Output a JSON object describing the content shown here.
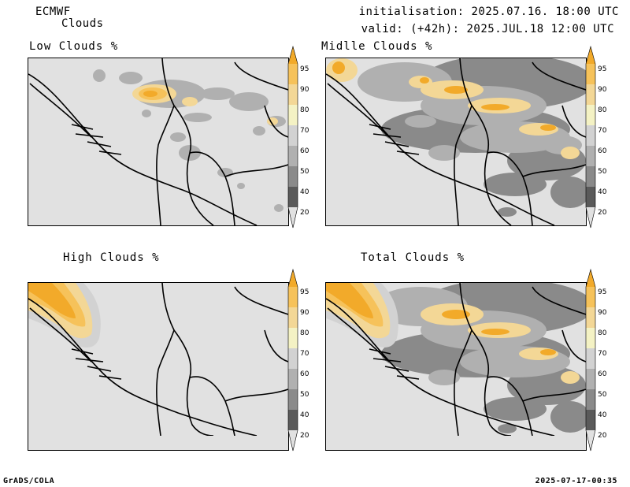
{
  "header": {
    "model": "ECMWF",
    "product": "Clouds",
    "init": "initialisation: 2025.07.16. 18:00 UTC",
    "valid": "valid: (+42h): 2025.JUL.18 12:00 UTC"
  },
  "panels": [
    {
      "title": "Low Clouds %"
    },
    {
      "title": "Midlle Clouds %"
    },
    {
      "title": "High Clouds %"
    },
    {
      "title": "Total Clouds %"
    }
  ],
  "legend": {
    "labels": [
      "95",
      "90",
      "80",
      "70",
      "60",
      "50",
      "40",
      "20"
    ],
    "colors": [
      "#f2aa2a",
      "#f6c25a",
      "#f3d796",
      "#f4f2c4",
      "#d2d2d2",
      "#b0b0b0",
      "#8a8a8a",
      "#5a5a5a",
      "#e1e1e1"
    ]
  },
  "footer": {
    "left": "GrADS/COLA",
    "right": "2025-07-17-00:35"
  }
}
